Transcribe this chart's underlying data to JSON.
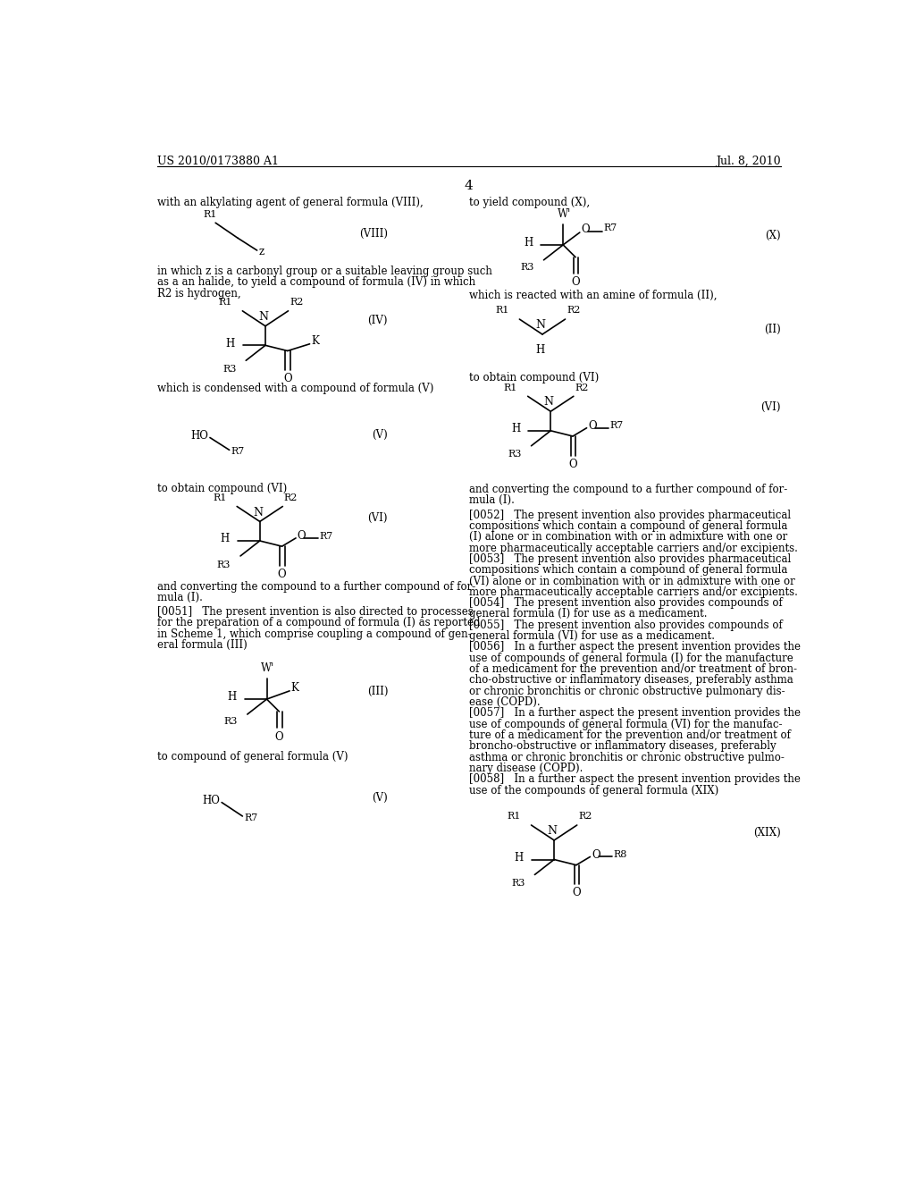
{
  "bg_color": "#ffffff",
  "header_left": "US 2010/0173880 A1",
  "header_right": "Jul. 8, 2010",
  "page_number": "4"
}
